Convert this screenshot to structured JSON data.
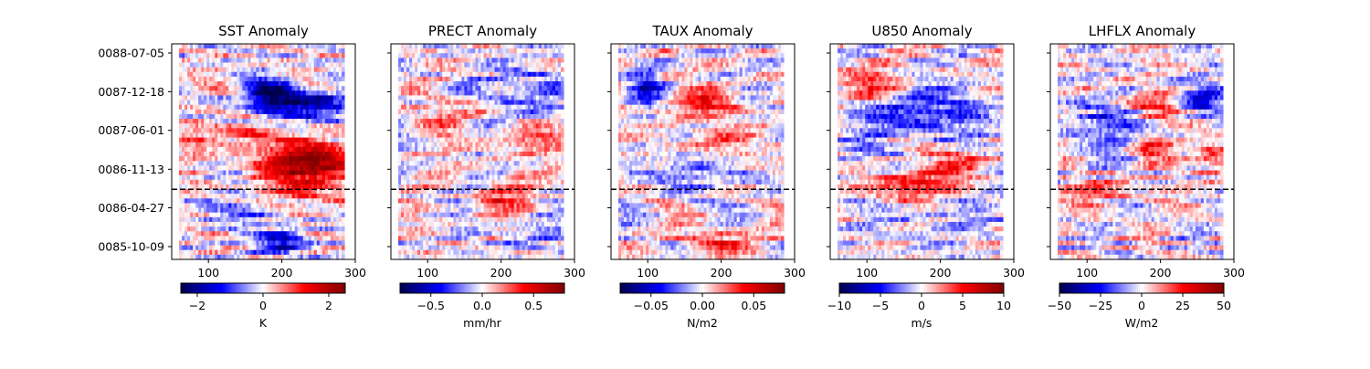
{
  "chart_data": [
    {
      "type": "heatmap",
      "title": "SST Anomaly",
      "xlim": [
        50,
        300
      ],
      "xticks": [
        "100",
        "200",
        "300"
      ],
      "yticks": [
        "0088-07-05",
        "0087-12-18",
        "0087-06-01",
        "0086-11-13",
        "0086-04-27",
        "0085-10-09"
      ],
      "dashed_line_date": "0086-08-01",
      "data_extent_x": [
        60,
        285
      ],
      "colorbar": {
        "cmap": "seismic",
        "ticks": [
          "−2",
          "0",
          "2"
        ],
        "range": [
          -2.5,
          2.5
        ],
        "label": "K"
      },
      "features": [
        {
          "x": 185,
          "y": 0.76,
          "sx": 22,
          "sy": 0.05,
          "v": -1.0
        },
        {
          "x": 240,
          "y": 0.72,
          "sx": 40,
          "sy": 0.05,
          "v": -0.8
        },
        {
          "x": 225,
          "y": 0.46,
          "sx": 38,
          "sy": 0.07,
          "v": 1.0
        },
        {
          "x": 265,
          "y": 0.43,
          "sx": 25,
          "sy": 0.05,
          "v": 0.5
        },
        {
          "x": 150,
          "y": 0.58,
          "sx": 30,
          "sy": 0.03,
          "v": 0.4
        },
        {
          "x": 200,
          "y": 0.08,
          "sx": 22,
          "sy": 0.04,
          "v": -0.8
        },
        {
          "x": 160,
          "y": 0.24,
          "sx": 35,
          "sy": 0.05,
          "v": -0.4
        },
        {
          "x": 80,
          "y": 0.55,
          "sx": 20,
          "sy": 0.08,
          "v": 0.3
        },
        {
          "x": 220,
          "y": 0.3,
          "sx": 60,
          "sy": 0.06,
          "v": 0.35
        }
      ]
    },
    {
      "type": "heatmap",
      "title": "PRECT Anomaly",
      "xlim": [
        50,
        300
      ],
      "xticks": [
        "100",
        "200",
        "300"
      ],
      "yticks": [
        "0088-07-05",
        "0087-12-18",
        "0087-06-01",
        "0086-11-13",
        "0086-04-27",
        "0085-10-09"
      ],
      "dashed_line_date": "0086-08-01",
      "data_extent_x": [
        60,
        285
      ],
      "colorbar": {
        "cmap": "seismic",
        "ticks": [
          "−0.5",
          "0.0",
          "0.5"
        ],
        "range": [
          -0.8,
          0.8
        ],
        "label": "mm/hr"
      },
      "features": [
        {
          "x": 230,
          "y": 0.78,
          "sx": 40,
          "sy": 0.08,
          "v": -0.35
        },
        {
          "x": 200,
          "y": 0.28,
          "sx": 30,
          "sy": 0.06,
          "v": 0.4
        },
        {
          "x": 230,
          "y": 0.55,
          "sx": 40,
          "sy": 0.04,
          "v": 0.35
        },
        {
          "x": 240,
          "y": 0.12,
          "sx": 30,
          "sy": 0.05,
          "v": -0.3
        },
        {
          "x": 130,
          "y": 0.68,
          "sx": 30,
          "sy": 0.05,
          "v": 0.3
        }
      ]
    },
    {
      "type": "heatmap",
      "title": "TAUX Anomaly",
      "xlim": [
        50,
        300
      ],
      "xticks": [
        "100",
        "200",
        "300"
      ],
      "yticks": [
        "0088-07-05",
        "0087-12-18",
        "0087-06-01",
        "0086-11-13",
        "0086-04-27",
        "0085-10-09"
      ],
      "dashed_line_date": "0086-08-01",
      "data_extent_x": [
        60,
        285
      ],
      "colorbar": {
        "cmap": "seismic",
        "ticks": [
          "−0.05",
          "0.00",
          "0.05"
        ],
        "range": [
          -0.08,
          0.08
        ],
        "label": "N/m2"
      },
      "features": [
        {
          "x": 100,
          "y": 0.8,
          "sx": 15,
          "sy": 0.05,
          "v": -0.7
        },
        {
          "x": 180,
          "y": 0.72,
          "sx": 35,
          "sy": 0.05,
          "v": 0.5
        },
        {
          "x": 160,
          "y": 0.4,
          "sx": 30,
          "sy": 0.05,
          "v": -0.4
        },
        {
          "x": 200,
          "y": 0.55,
          "sx": 40,
          "sy": 0.04,
          "v": 0.3
        },
        {
          "x": 200,
          "y": 0.08,
          "sx": 40,
          "sy": 0.04,
          "v": 0.4
        }
      ]
    },
    {
      "type": "heatmap",
      "title": "U850 Anomaly",
      "xlim": [
        50,
        300
      ],
      "xticks": [
        "100",
        "200",
        "300"
      ],
      "yticks": [
        "0088-07-05",
        "0087-12-18",
        "0087-06-01",
        "0086-11-13",
        "0086-04-27",
        "0085-10-09"
      ],
      "dashed_line_date": "0086-08-01",
      "data_extent_x": [
        60,
        285
      ],
      "colorbar": {
        "cmap": "seismic",
        "ticks": [
          "−10",
          "−5",
          "0",
          "5",
          "10"
        ],
        "range": [
          -10,
          10
        ],
        "label": "m/s"
      },
      "features": [
        {
          "x": 100,
          "y": 0.8,
          "sx": 30,
          "sy": 0.06,
          "v": 0.6
        },
        {
          "x": 170,
          "y": 0.68,
          "sx": 55,
          "sy": 0.08,
          "v": -0.6
        },
        {
          "x": 160,
          "y": 0.35,
          "sx": 35,
          "sy": 0.05,
          "v": 0.8
        },
        {
          "x": 200,
          "y": 0.46,
          "sx": 60,
          "sy": 0.05,
          "v": 0.3
        },
        {
          "x": 110,
          "y": 0.45,
          "sx": 40,
          "sy": 0.06,
          "v": -0.3
        },
        {
          "x": 200,
          "y": 0.2,
          "sx": 60,
          "sy": 0.1,
          "v": -0.15
        }
      ]
    },
    {
      "type": "heatmap",
      "title": "LHFLX Anomaly",
      "xlim": [
        50,
        300
      ],
      "xticks": [
        "100",
        "200",
        "300"
      ],
      "yticks": [
        "0088-07-05",
        "0087-12-18",
        "0087-06-01",
        "0086-11-13",
        "0086-04-27",
        "0085-10-09"
      ],
      "dashed_line_date": "0086-08-01",
      "data_extent_x": [
        60,
        285
      ],
      "colorbar": {
        "cmap": "seismic",
        "ticks": [
          "−50",
          "−25",
          "0",
          "25",
          "50"
        ],
        "range": [
          -50,
          50
        ],
        "label": "W/m2"
      },
      "features": [
        {
          "x": 255,
          "y": 0.75,
          "sx": 25,
          "sy": 0.05,
          "v": -0.7
        },
        {
          "x": 200,
          "y": 0.72,
          "sx": 30,
          "sy": 0.05,
          "v": 0.5
        },
        {
          "x": 185,
          "y": 0.52,
          "sx": 20,
          "sy": 0.04,
          "v": 0.5
        },
        {
          "x": 270,
          "y": 0.48,
          "sx": 15,
          "sy": 0.05,
          "v": 0.6
        },
        {
          "x": 130,
          "y": 0.62,
          "sx": 40,
          "sy": 0.08,
          "v": -0.4
        },
        {
          "x": 120,
          "y": 0.32,
          "sx": 35,
          "sy": 0.04,
          "v": 0.4
        }
      ]
    }
  ]
}
